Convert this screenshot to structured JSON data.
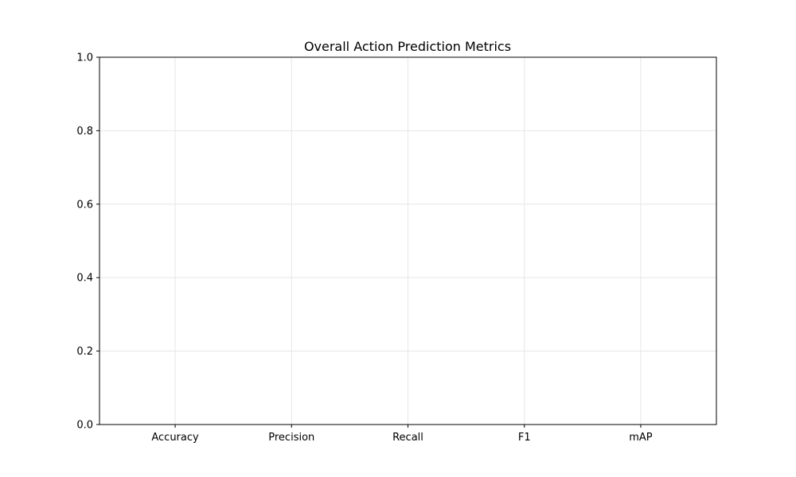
{
  "chart_data": {
    "type": "bar",
    "title": "Overall Action Prediction Metrics",
    "xlabel": "",
    "ylabel": "",
    "categories": [
      "Accuracy",
      "Precision",
      "Recall",
      "F1",
      "mAP"
    ],
    "series": [],
    "ylim": [
      0,
      1.0
    ],
    "yticks": [
      "0.0",
      "0.2",
      "0.4",
      "0.6",
      "0.8",
      "1.0"
    ],
    "grid": true,
    "legend": "none"
  },
  "colors": {
    "background": "#ffffff",
    "grid": "#e6e6e6",
    "axes": "#000000"
  }
}
